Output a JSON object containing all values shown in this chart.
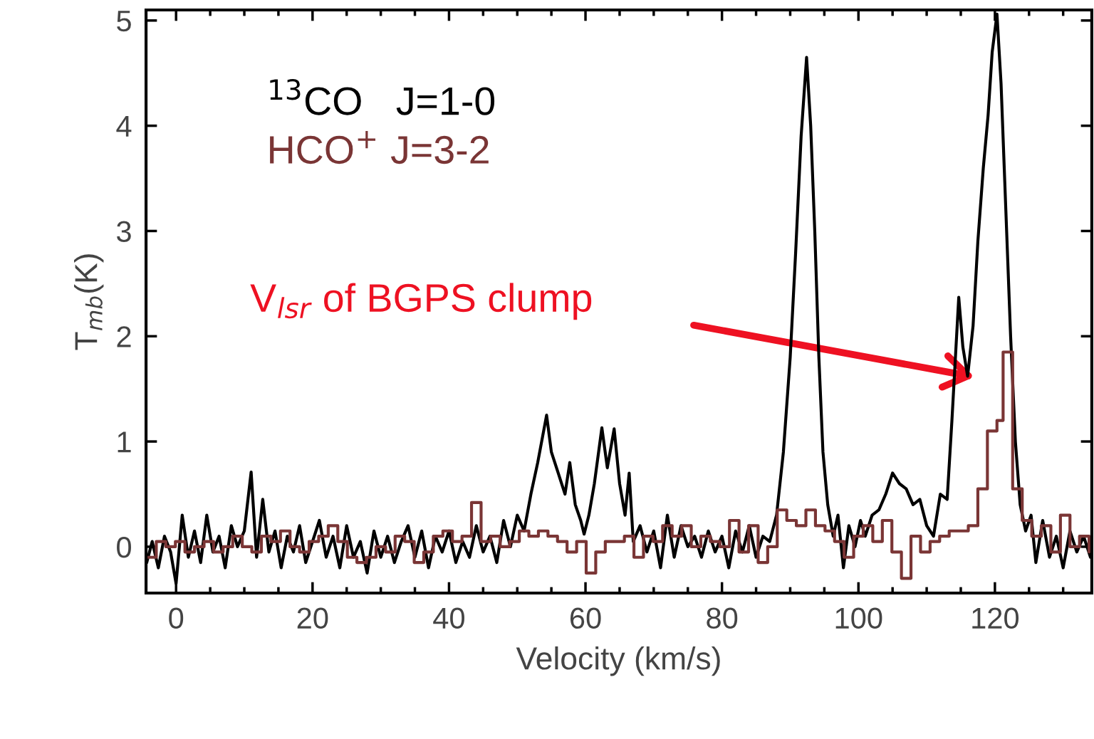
{
  "chart_data": {
    "type": "line",
    "xlabel": "Velocity (km/s)",
    "ylabel": "T$_{mb}$(K)",
    "xlim": [
      -4.4,
      134.2
    ],
    "ylim": [
      -0.44,
      5.1
    ],
    "xticks": [
      0,
      20,
      40,
      60,
      80,
      100,
      120
    ],
    "yticks": [
      0,
      1,
      2,
      3,
      4,
      5
    ],
    "grid": false,
    "legend": "top left",
    "annotations": [
      "V$_{lsr}$ of BGPS clump"
    ],
    "series": [
      {
        "name": "$^{13}$CO   J=1-0",
        "color": "#000000",
        "x": [
          -4.3,
          -3.5,
          -2.6,
          -1.7,
          -0.8,
          0,
          0.9,
          1.8,
          2.7,
          3.6,
          4.5,
          5.4,
          6.3,
          7.2,
          8.1,
          9,
          10,
          11,
          11.8,
          12.7,
          13.6,
          14.5,
          15.4,
          16.3,
          17.2,
          18.1,
          19,
          20,
          21,
          22,
          23,
          24,
          25,
          26,
          27,
          28,
          29,
          30,
          31,
          32,
          33,
          34,
          35,
          36,
          37,
          38,
          39,
          40,
          41,
          42,
          43,
          44,
          45,
          46,
          47,
          48,
          49,
          50,
          51,
          52,
          53,
          54.3,
          55,
          56,
          57,
          57.7,
          58.5,
          59.3,
          59.8,
          60.5,
          61.3,
          62.4,
          63.2,
          64.2,
          65,
          65.8,
          66.4,
          67,
          68,
          69,
          70,
          71,
          72,
          73,
          74,
          75,
          76,
          77,
          78,
          79,
          80,
          81,
          82,
          83,
          84,
          85,
          86,
          87,
          88,
          89,
          90,
          90.8,
          91.6,
          92.4,
          93,
          93.6,
          94.2,
          94.8,
          95.5,
          96.3,
          97,
          97.8,
          98.6,
          99.5,
          100.3,
          101,
          102,
          103,
          104,
          105,
          106,
          107,
          108,
          109,
          110,
          111,
          112,
          113,
          113.7,
          114.7,
          115.3,
          116,
          116.8,
          117.5,
          118.3,
          119,
          119.6,
          120.3,
          120.9,
          121.6,
          122.3,
          123,
          123.7,
          124.5,
          125.3,
          126,
          127,
          128,
          129,
          130,
          131,
          132,
          133,
          134
        ],
        "values": [
          -0.15,
          0.05,
          -0.2,
          0.1,
          -0.05,
          -0.35,
          0.3,
          -0.1,
          0.15,
          -0.15,
          0.3,
          -0.05,
          0.1,
          -0.2,
          0.2,
          0.0,
          0.15,
          0.71,
          -0.1,
          0.45,
          -0.05,
          0.15,
          -0.2,
          0.1,
          -0.05,
          0.2,
          -0.15,
          0.05,
          0.25,
          -0.1,
          0.1,
          -0.2,
          0.2,
          -0.1,
          0.05,
          -0.25,
          0.15,
          -0.1,
          0.1,
          -0.15,
          0.05,
          0.2,
          -0.1,
          0.15,
          -0.2,
          0.1,
          -0.05,
          0.15,
          -0.15,
          0.05,
          -0.1,
          0.2,
          -0.05,
          0.1,
          -0.15,
          0.25,
          0.0,
          0.3,
          0.15,
          0.5,
          0.8,
          1.25,
          0.9,
          0.7,
          0.5,
          0.8,
          0.4,
          0.25,
          0.12,
          0.3,
          0.6,
          1.13,
          0.75,
          1.12,
          0.6,
          0.3,
          0.7,
          0.05,
          0.2,
          -0.05,
          0.15,
          -0.2,
          0.3,
          -0.1,
          0.2,
          0.0,
          0.1,
          -0.1,
          0.15,
          -0.05,
          0.1,
          -0.2,
          0.15,
          -0.05,
          0.2,
          -0.1,
          0.1,
          0.05,
          0.3,
          0.9,
          1.8,
          2.8,
          3.9,
          4.65,
          4.0,
          3.0,
          1.8,
          0.9,
          0.4,
          0.1,
          0.3,
          -0.2,
          0.2,
          0.0,
          0.25,
          0.1,
          0.3,
          0.35,
          0.5,
          0.7,
          0.6,
          0.55,
          0.4,
          0.45,
          0.2,
          0.1,
          0.5,
          0.45,
          1.2,
          2.37,
          1.9,
          1.62,
          2.1,
          2.9,
          3.6,
          4.1,
          4.7,
          5.06,
          4.4,
          3.2,
          2.0,
          1.0,
          0.4,
          0.15,
          0.3,
          -0.15,
          0.25,
          -0.1,
          0.1,
          -0.2,
          0.15,
          -0.05,
          0.1,
          -0.1
        ]
      },
      {
        "name": "HCO$^{+}$ J=3-2",
        "type": "step",
        "color": "#7a3535",
        "x": [
          -4.3,
          -2.9,
          -1.5,
          -0.1,
          1.3,
          2.7,
          4.1,
          5.5,
          6.9,
          8.3,
          9.7,
          11.1,
          12.5,
          13.9,
          15.3,
          16.7,
          18.1,
          19.5,
          20.9,
          22.3,
          23.7,
          25.1,
          26.5,
          27.9,
          29.3,
          30.7,
          32.1,
          33.5,
          34.9,
          36.3,
          37.7,
          39.1,
          40.5,
          41.9,
          43.3,
          44.7,
          46.1,
          47.5,
          48.9,
          50.3,
          51.7,
          53.1,
          54.5,
          55.9,
          57.3,
          58.7,
          60.1,
          61.5,
          62.9,
          64.3,
          65.7,
          67.1,
          68.5,
          69.9,
          71.3,
          72.7,
          74.1,
          75.5,
          76.9,
          78.3,
          79.7,
          81.1,
          82.5,
          83.9,
          85.3,
          86.7,
          88.1,
          89.5,
          90.9,
          92.3,
          93.7,
          95.1,
          96.5,
          97.9,
          99.3,
          100.7,
          102.1,
          103.5,
          104.9,
          106.3,
          107.7,
          109.1,
          110.5,
          111.9,
          113.3,
          114.7,
          116.1,
          117.5,
          118.9,
          120.3,
          121.2,
          122.6,
          124,
          125.4,
          126.8,
          128.2,
          129.6,
          131,
          132.4,
          133.8
        ],
        "values": [
          -0.1,
          0.05,
          0.0,
          0.05,
          -0.05,
          0.0,
          0.05,
          -0.05,
          0.0,
          0.1,
          0.0,
          -0.05,
          0.1,
          0.05,
          0.15,
          0.0,
          -0.05,
          0.05,
          0.1,
          0.2,
          0.05,
          -0.1,
          -0.15,
          -0.1,
          0.0,
          -0.05,
          0.1,
          0.05,
          -0.15,
          -0.05,
          0.1,
          0.15,
          0.05,
          0.1,
          0.42,
          0.05,
          0.1,
          0.0,
          0.05,
          0.15,
          0.1,
          0.15,
          0.1,
          0.05,
          -0.05,
          0.05,
          -0.25,
          -0.05,
          0.05,
          0.05,
          0.1,
          -0.1,
          0.1,
          0.05,
          0.2,
          0.1,
          0.2,
          0.0,
          0.1,
          0.05,
          0.0,
          0.25,
          -0.05,
          0.2,
          -0.15,
          0.0,
          0.35,
          0.25,
          0.2,
          0.35,
          0.2,
          0.15,
          0.05,
          -0.1,
          0.1,
          0.2,
          0.05,
          0.25,
          -0.05,
          -0.3,
          0.1,
          -0.05,
          0.05,
          0.1,
          0.15,
          0.15,
          0.2,
          0.55,
          1.1,
          1.2,
          1.85,
          0.55,
          0.25,
          0.1,
          0.2,
          -0.05,
          0.3,
          0.0,
          0.1,
          -0.05
        ]
      }
    ]
  }
}
